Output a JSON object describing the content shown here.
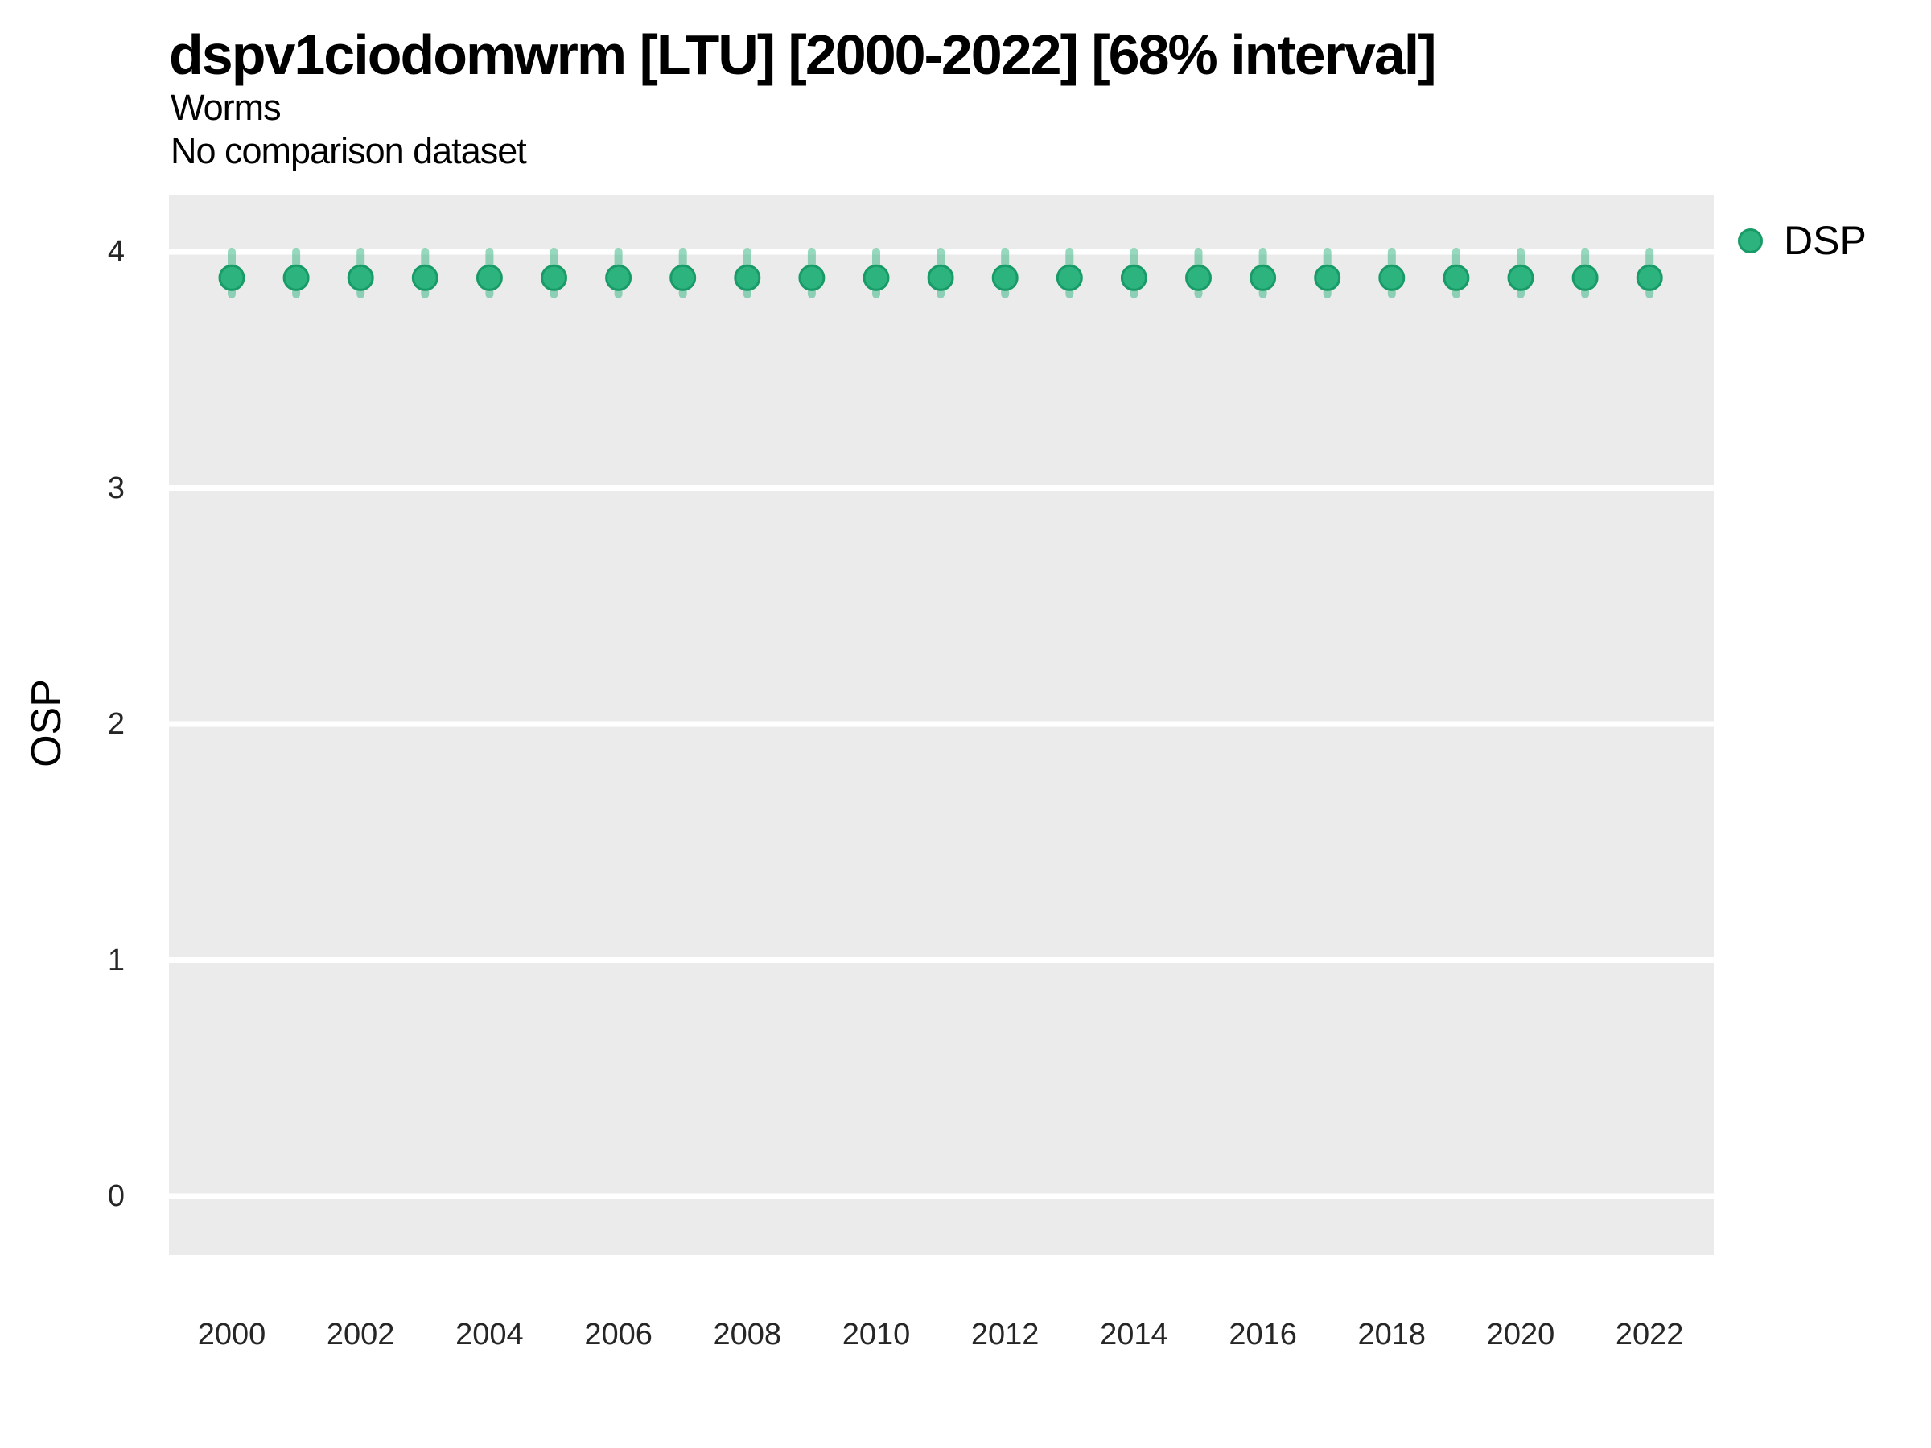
{
  "title": "dspv1ciodomwrm [LTU] [2000-2022] [68% interval]",
  "subtitle": "Worms",
  "comparison_note": "No comparison dataset",
  "legend": {
    "position": "right",
    "items": [
      {
        "label": "DSP",
        "color": "#2DB37E",
        "border_color": "#199B68"
      }
    ]
  },
  "chart_data": {
    "type": "scatter",
    "title": "dspv1ciodomwrm [LTU] [2000-2022] [68% interval]",
    "subtitle": "Worms",
    "note": "No comparison dataset",
    "xlabel": "",
    "ylabel": "OSP",
    "interval": "68%",
    "x": [
      2000,
      2001,
      2002,
      2003,
      2004,
      2005,
      2006,
      2007,
      2008,
      2009,
      2010,
      2011,
      2012,
      2013,
      2014,
      2015,
      2016,
      2017,
      2018,
      2019,
      2020,
      2021,
      2022
    ],
    "series": [
      {
        "name": "DSP",
        "values": [
          3.89,
          3.89,
          3.89,
          3.89,
          3.89,
          3.89,
          3.89,
          3.89,
          3.89,
          3.89,
          3.89,
          3.89,
          3.89,
          3.89,
          3.89,
          3.89,
          3.89,
          3.89,
          3.89,
          3.89,
          3.89,
          3.89,
          3.89
        ],
        "lo": [
          3.82,
          3.82,
          3.82,
          3.82,
          3.82,
          3.82,
          3.82,
          3.82,
          3.82,
          3.82,
          3.82,
          3.82,
          3.82,
          3.82,
          3.82,
          3.82,
          3.82,
          3.82,
          3.82,
          3.82,
          3.82,
          3.82,
          3.82
        ],
        "hi": [
          4.0,
          4.0,
          4.0,
          4.0,
          4.0,
          4.0,
          4.0,
          4.0,
          4.0,
          4.0,
          4.0,
          4.0,
          4.0,
          4.0,
          4.0,
          4.0,
          4.0,
          4.0,
          4.0,
          4.0,
          4.0,
          4.0,
          4.0
        ]
      }
    ],
    "xticks": [
      2000,
      2002,
      2004,
      2006,
      2008,
      2010,
      2012,
      2014,
      2016,
      2018,
      2020,
      2022
    ],
    "yticks": [
      0,
      1,
      2,
      3,
      4
    ],
    "ylim": [
      -0.25,
      4.25
    ],
    "grid": "horizontal-major-only",
    "legend_position": "right",
    "colors": {
      "point_fill": "#2DB37E",
      "point_stroke": "#199B68",
      "errorbar": "rgba(45,179,126,0.5)",
      "panel_background": "#EBEBEB",
      "gridline": "#FFFFFF",
      "tick_label": "#262626"
    }
  }
}
